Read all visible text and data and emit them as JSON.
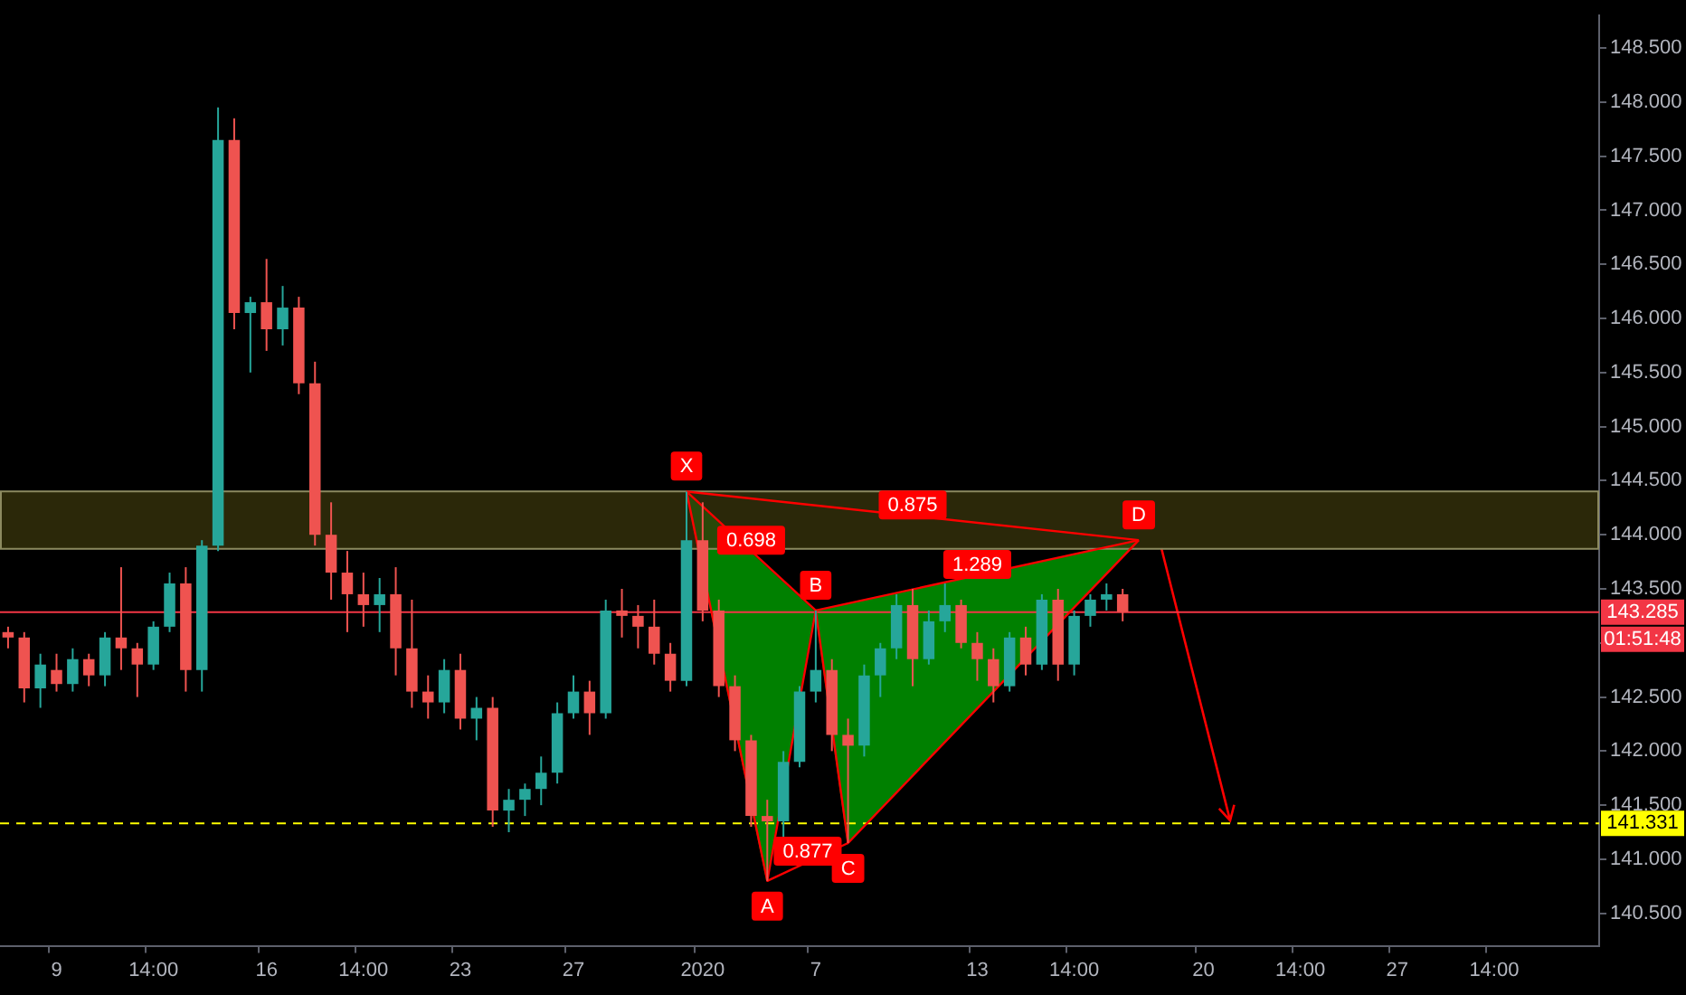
{
  "chart_data": {
    "type": "candlestick",
    "categories": [
      null,
      null,
      null,
      "9",
      null,
      null,
      null,
      null,
      null,
      "14:00",
      null,
      null,
      null,
      null,
      null,
      null,
      "16",
      null,
      null,
      null,
      null,
      null,
      "14:00",
      null,
      null,
      null,
      null,
      null,
      "23",
      null,
      null,
      null,
      null,
      null,
      null,
      "27",
      null,
      null,
      null,
      null,
      null,
      null,
      null,
      "2020",
      null,
      null,
      null,
      null,
      null,
      null,
      "7",
      null,
      null,
      null,
      null,
      null,
      null,
      null,
      null,
      null,
      "13",
      null,
      null,
      null,
      null,
      null,
      "14:00",
      null,
      null,
      null,
      null,
      null,
      null,
      null,
      "20",
      null,
      null,
      null,
      null,
      null,
      "14:00",
      null,
      null,
      null,
      null,
      null,
      "27",
      null,
      null,
      null,
      null,
      null,
      "14:00",
      null,
      null,
      null,
      null,
      null,
      null
    ],
    "ohlc": [
      [
        143.1,
        143.15,
        142.95,
        143.05
      ],
      [
        143.05,
        143.1,
        142.45,
        142.58
      ],
      [
        142.58,
        142.9,
        142.4,
        142.8
      ],
      [
        142.75,
        142.9,
        142.55,
        142.62
      ],
      [
        142.62,
        142.95,
        142.55,
        142.85
      ],
      [
        142.85,
        142.9,
        142.6,
        142.7
      ],
      [
        142.7,
        143.1,
        142.6,
        143.05
      ],
      [
        143.05,
        143.7,
        142.75,
        142.95
      ],
      [
        142.95,
        143.0,
        142.5,
        142.8
      ],
      [
        142.8,
        143.2,
        142.75,
        143.15
      ],
      [
        143.15,
        143.65,
        143.1,
        143.55
      ],
      [
        143.55,
        143.7,
        142.55,
        142.75
      ],
      [
        142.75,
        143.95,
        142.55,
        143.9
      ],
      [
        143.9,
        147.95,
        143.85,
        147.65
      ],
      [
        147.65,
        147.85,
        145.9,
        146.05
      ],
      [
        146.05,
        146.2,
        145.5,
        146.15
      ],
      [
        146.15,
        146.55,
        145.7,
        145.9
      ],
      [
        145.9,
        146.3,
        145.75,
        146.1
      ],
      [
        146.1,
        146.2,
        145.3,
        145.4
      ],
      [
        145.4,
        145.6,
        143.9,
        144.0
      ],
      [
        144.0,
        144.3,
        143.4,
        143.65
      ],
      [
        143.65,
        143.85,
        143.1,
        143.45
      ],
      [
        143.45,
        143.65,
        143.15,
        143.35
      ],
      [
        143.35,
        143.6,
        143.1,
        143.45
      ],
      [
        143.45,
        143.7,
        142.7,
        142.95
      ],
      [
        142.95,
        143.4,
        142.4,
        142.55
      ],
      [
        142.55,
        142.7,
        142.3,
        142.45
      ],
      [
        142.45,
        142.85,
        142.35,
        142.75
      ],
      [
        142.75,
        142.9,
        142.2,
        142.3
      ],
      [
        142.3,
        142.5,
        142.1,
        142.4
      ],
      [
        142.4,
        142.5,
        141.3,
        141.45
      ],
      [
        141.45,
        141.65,
        141.25,
        141.55
      ],
      [
        141.55,
        141.7,
        141.4,
        141.65
      ],
      [
        141.65,
        141.95,
        141.5,
        141.8
      ],
      [
        141.8,
        142.45,
        141.7,
        142.35
      ],
      [
        142.35,
        142.7,
        142.3,
        142.55
      ],
      [
        142.55,
        142.65,
        142.15,
        142.35
      ],
      [
        142.35,
        143.4,
        142.3,
        143.3
      ],
      [
        143.3,
        143.5,
        143.05,
        143.25
      ],
      [
        143.25,
        143.35,
        142.95,
        143.15
      ],
      [
        143.15,
        143.4,
        142.8,
        142.9
      ],
      [
        142.9,
        143.0,
        142.55,
        142.65
      ],
      [
        142.65,
        144.4,
        142.6,
        143.95
      ],
      [
        143.95,
        144.3,
        143.2,
        143.3
      ],
      [
        143.3,
        143.4,
        142.5,
        142.6
      ],
      [
        142.6,
        142.7,
        142.0,
        142.1
      ],
      [
        142.1,
        142.15,
        141.3,
        141.4
      ],
      [
        141.4,
        141.55,
        140.8,
        141.35
      ],
      [
        141.35,
        142.0,
        141.2,
        141.9
      ],
      [
        141.9,
        142.6,
        141.85,
        142.55
      ],
      [
        142.55,
        143.3,
        142.45,
        142.75
      ],
      [
        142.75,
        142.85,
        142.0,
        142.15
      ],
      [
        142.15,
        142.3,
        141.15,
        142.05
      ],
      [
        142.05,
        142.8,
        141.95,
        142.7
      ],
      [
        142.7,
        143.0,
        142.5,
        142.95
      ],
      [
        142.95,
        143.45,
        142.85,
        143.35
      ],
      [
        143.35,
        143.5,
        142.6,
        142.85
      ],
      [
        142.85,
        143.3,
        142.8,
        143.2
      ],
      [
        143.2,
        143.55,
        143.1,
        143.35
      ],
      [
        143.35,
        143.4,
        142.95,
        143.0
      ],
      [
        143.0,
        143.1,
        142.65,
        142.85
      ],
      [
        142.85,
        142.95,
        142.45,
        142.6
      ],
      [
        142.6,
        143.1,
        142.55,
        143.05
      ],
      [
        143.05,
        143.15,
        142.7,
        142.8
      ],
      [
        142.8,
        143.45,
        142.75,
        143.4
      ],
      [
        143.4,
        143.5,
        142.65,
        142.8
      ],
      [
        142.8,
        143.3,
        142.7,
        143.25
      ],
      [
        143.25,
        143.45,
        143.15,
        143.4
      ],
      [
        143.4,
        143.55,
        143.3,
        143.45
      ],
      [
        143.45,
        143.5,
        143.2,
        143.285
      ],
      null,
      null,
      null,
      null,
      null,
      null,
      null,
      null,
      null,
      null,
      null,
      null,
      null,
      null,
      null,
      null,
      null,
      null,
      null,
      null,
      null,
      null,
      null,
      null,
      null,
      null,
      null,
      null,
      null
    ],
    "series": [
      {
        "type": "line",
        "color": "#ff0000",
        "values": [
          null,
          null,
          null,
          null,
          null,
          null,
          null,
          null,
          null,
          null,
          null,
          null,
          null,
          null,
          null,
          null,
          null,
          null,
          null,
          null,
          null,
          null,
          null,
          null,
          null,
          null,
          null,
          null,
          null,
          null,
          null,
          null,
          null,
          null,
          null,
          null,
          null,
          null,
          null,
          null,
          null,
          null,
          144.4,
          null,
          null,
          null,
          null,
          140.8,
          null,
          null,
          143.3,
          null,
          141.15,
          null,
          null,
          null,
          null,
          null,
          null,
          null,
          null,
          null,
          null,
          null,
          null,
          null,
          null,
          null,
          null,
          null,
          143.95,
          null,
          null,
          null,
          null,
          null,
          null,
          null,
          null,
          null,
          null,
          null,
          null,
          null,
          null,
          null,
          null,
          null,
          null,
          null,
          null,
          null,
          null,
          null,
          null,
          null,
          null,
          null,
          null
        ],
        "value_labels": [
          null,
          null,
          null,
          null,
          null,
          null,
          null,
          null,
          null,
          null,
          null,
          null,
          null,
          null,
          null,
          null,
          null,
          null,
          null,
          null,
          null,
          null,
          null,
          null,
          null,
          null,
          null,
          null,
          null,
          null,
          null,
          null,
          null,
          null,
          null,
          null,
          null,
          null,
          null,
          null,
          null,
          null,
          "X",
          null,
          null,
          null,
          null,
          "A",
          null,
          null,
          "B",
          null,
          "C",
          null,
          null,
          null,
          null,
          null,
          null,
          null,
          null,
          null,
          null,
          null,
          null,
          null,
          null,
          null,
          null,
          null,
          "D",
          null,
          null,
          null,
          null,
          null,
          null,
          null,
          null,
          null,
          null,
          null,
          null,
          null,
          null,
          null,
          null,
          null,
          null,
          null,
          null,
          null,
          null,
          null,
          null,
          null,
          null,
          null,
          null
        ]
      },
      {
        "type": "line",
        "color": "#ff0000",
        "values": [
          null,
          null,
          null,
          null,
          null,
          null,
          null,
          null,
          null,
          null,
          null,
          null,
          null,
          null,
          null,
          null,
          null,
          null,
          null,
          null,
          null,
          null,
          null,
          null,
          null,
          null,
          null,
          null,
          null,
          null,
          null,
          null,
          null,
          null,
          null,
          null,
          null,
          null,
          null,
          null,
          null,
          null,
          144.4,
          null,
          null,
          null,
          null,
          null,
          null,
          null,
          143.3,
          null,
          null,
          null,
          null,
          null,
          null,
          null,
          null,
          null,
          null,
          null,
          null,
          null,
          null,
          null,
          null,
          null,
          null,
          null,
          null,
          null,
          null,
          null,
          null,
          null,
          null,
          null,
          null,
          null,
          null,
          null,
          null,
          null,
          null,
          null,
          null,
          null,
          null,
          null,
          null,
          null,
          null,
          null,
          null,
          null,
          null,
          null,
          null
        ]
      },
      {
        "type": "line",
        "color": "#ff0000",
        "values": [
          null,
          null,
          null,
          null,
          null,
          null,
          null,
          null,
          null,
          null,
          null,
          null,
          null,
          null,
          null,
          null,
          null,
          null,
          null,
          null,
          null,
          null,
          null,
          null,
          null,
          null,
          null,
          null,
          null,
          null,
          null,
          null,
          null,
          null,
          null,
          null,
          null,
          null,
          null,
          null,
          null,
          null,
          144.4,
          null,
          null,
          null,
          null,
          null,
          null,
          null,
          null,
          null,
          null,
          null,
          null,
          null,
          null,
          null,
          null,
          null,
          null,
          null,
          null,
          null,
          null,
          null,
          null,
          null,
          null,
          null,
          143.95,
          null,
          null,
          null,
          null,
          null,
          null,
          null,
          null,
          null,
          null,
          null,
          null,
          null,
          null,
          null,
          null,
          null,
          null,
          null,
          null,
          null,
          null,
          null,
          null,
          null,
          null,
          null,
          null
        ]
      },
      {
        "type": "line",
        "color": "#ff0000",
        "values": [
          null,
          null,
          null,
          null,
          null,
          null,
          null,
          null,
          null,
          null,
          null,
          null,
          null,
          null,
          null,
          null,
          null,
          null,
          null,
          null,
          null,
          null,
          null,
          null,
          null,
          null,
          null,
          null,
          null,
          null,
          null,
          null,
          null,
          null,
          null,
          null,
          null,
          null,
          null,
          null,
          null,
          null,
          null,
          null,
          null,
          null,
          null,
          null,
          null,
          null,
          143.3,
          null,
          null,
          null,
          null,
          null,
          null,
          null,
          null,
          null,
          null,
          null,
          null,
          null,
          null,
          null,
          null,
          null,
          null,
          null,
          143.95,
          null,
          null,
          null,
          null,
          null,
          null,
          null,
          null,
          null,
          null,
          null,
          null,
          null,
          null,
          null,
          null,
          null,
          null,
          null,
          null,
          null,
          null,
          null,
          null,
          null,
          null,
          null,
          null
        ]
      },
      {
        "type": "line",
        "color": "#ff0000",
        "values": [
          null,
          null,
          null,
          null,
          null,
          null,
          null,
          null,
          null,
          null,
          null,
          null,
          null,
          null,
          null,
          null,
          null,
          null,
          null,
          null,
          null,
          null,
          null,
          null,
          null,
          null,
          null,
          null,
          null,
          null,
          null,
          null,
          null,
          null,
          null,
          null,
          null,
          null,
          null,
          null,
          null,
          null,
          null,
          null,
          null,
          null,
          null,
          140.8,
          null,
          null,
          null,
          null,
          141.15,
          null,
          null,
          null,
          null,
          null,
          null,
          null,
          null,
          null,
          null,
          null,
          null,
          null,
          null,
          null,
          null,
          null,
          null,
          null,
          null,
          null,
          null,
          null,
          null,
          null,
          null,
          null,
          null,
          null,
          null,
          null,
          null,
          null,
          null,
          null,
          null,
          null,
          null,
          null,
          null,
          null,
          null,
          null,
          null,
          null,
          null
        ]
      }
    ],
    "annotations": [
      "0.698",
      "0.875",
      "1.289",
      "0.877",
      "01:51:48"
    ],
    "ref_lines": [
      {
        "axis": "y",
        "value": 143.285,
        "label": "143.285",
        "color": "#f23645",
        "line_style": "solid"
      },
      {
        "axis": "y",
        "value": 141.331,
        "label": "141.331",
        "color": "#ffff00",
        "line_style": "dashed"
      }
    ],
    "bands": [
      {
        "axis": "y",
        "from": 143.87,
        "to": 144.4,
        "color": "#3a360c"
      }
    ],
    "ylim": [
      140.2,
      148.8
    ],
    "yticks": [
      {
        "value": 140.5,
        "label": "140.500"
      },
      {
        "value": 141,
        "label": "141.000"
      },
      {
        "value": 141.5,
        "label": "141.500"
      },
      {
        "value": 142,
        "label": "142.000"
      },
      {
        "value": 142.5,
        "label": "142.500"
      },
      {
        "value": 143,
        "label": null
      },
      {
        "value": 143.5,
        "label": "143.500"
      },
      {
        "value": 144,
        "label": "144.000"
      },
      {
        "value": 144.5,
        "label": "144.500"
      },
      {
        "value": 145,
        "label": "145.000"
      },
      {
        "value": 145.5,
        "label": "145.500"
      },
      {
        "value": 146,
        "label": "146.000"
      },
      {
        "value": 146.5,
        "label": "146.500"
      },
      {
        "value": 147,
        "label": "147.000"
      },
      {
        "value": 147.5,
        "label": "147.500"
      },
      {
        "value": 148,
        "label": "148.000"
      },
      {
        "value": 148.5,
        "label": "148.500"
      }
    ]
  }
}
